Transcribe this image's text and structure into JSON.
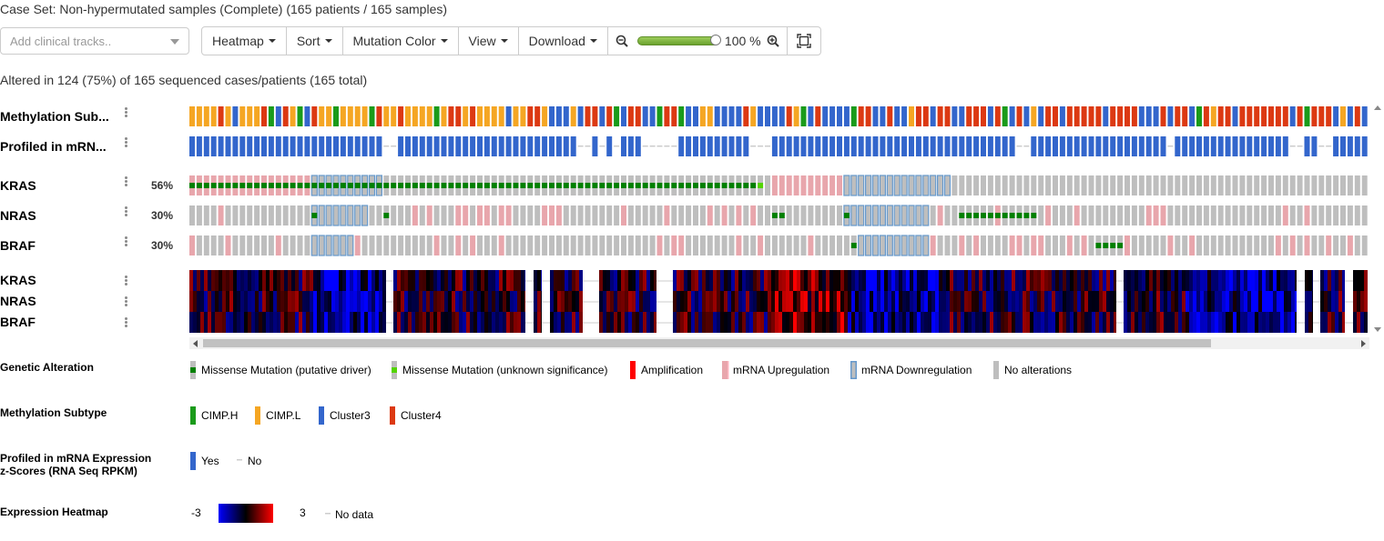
{
  "case_set_text": "Case Set: Non-hypermutated samples (Complete) (165 patients / 165 samples)",
  "clinical_tracks": {
    "placeholder": "Add clinical tracks.."
  },
  "toolbar": {
    "heatmap": "Heatmap",
    "sort": "Sort",
    "mutation_color": "Mutation Color",
    "view": "View",
    "download": "Download",
    "zoom_value": "100 %",
    "zoom_level": 1.0
  },
  "altered_text": "Altered in 124 (75%) of 165 sequenced cases/patients (165 total)",
  "tracks": {
    "methylation": "Methylation Sub...",
    "profiled": "Profiled in mRN...",
    "genes": [
      {
        "name": "KRAS",
        "pct": "56%"
      },
      {
        "name": "NRAS",
        "pct": "30%"
      },
      {
        "name": "BRAF",
        "pct": "30%"
      }
    ],
    "heatmap_rows": [
      "KRAS",
      "NRAS",
      "BRAF"
    ]
  },
  "legend": {
    "genetic_alteration": {
      "title": "Genetic Alteration",
      "items": [
        "Missense Mutation (putative driver)",
        "Missense Mutation (unknown significance)",
        "Amplification",
        "mRNA Upregulation",
        "mRNA Downregulation",
        "No alterations"
      ]
    },
    "methylation_subtype": {
      "title": "Methylation Subtype",
      "items": [
        "CIMP.H",
        "CIMP.L",
        "Cluster3",
        "Cluster4"
      ]
    },
    "profiled": {
      "title_line1": "Profiled in mRNA Expression",
      "title_line2": "z-Scores (RNA Seq RPKM)",
      "items": [
        "Yes",
        "No"
      ]
    },
    "expression_heatmap": {
      "title": "Expression Heatmap",
      "min": "-3",
      "max": "3",
      "no_data": "No data"
    }
  },
  "colors": {
    "cimp_h": "#1a9b1a",
    "cimp_l": "#f5a623",
    "cluster3": "#3366cc",
    "cluster4": "#dc3912",
    "missense_driver": "#008000",
    "missense_unknown": "#53d400",
    "amplification": "#ff0000",
    "mrna_up": "#ffb6c1",
    "mrna_down": "#6699cc",
    "no_alteration": "#bebebe",
    "heat_low": "#0000ff",
    "heat_mid": "#000000",
    "heat_high": "#ff0000"
  }
}
